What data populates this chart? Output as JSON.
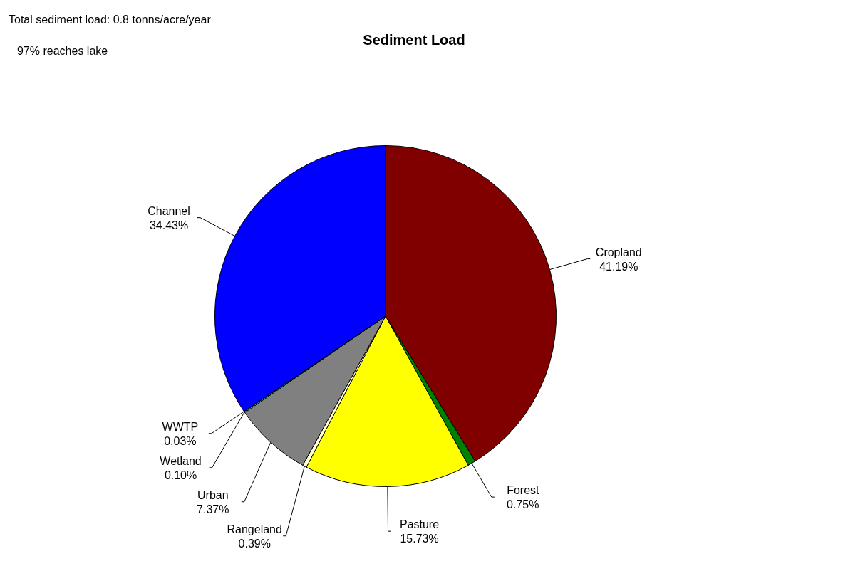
{
  "chart_data": {
    "type": "pie",
    "title": "Sediment Load",
    "annotations": [
      "Total sediment load: 0.8 tonns/acre/year",
      "97% reaches lake"
    ],
    "categories": [
      "Cropland",
      "Forest",
      "Pasture",
      "Rangeland",
      "Urban",
      "Wetland",
      "WWTP",
      "Channel"
    ],
    "values": [
      41.19,
      0.75,
      15.73,
      0.39,
      7.37,
      0.1,
      0.03,
      34.43
    ],
    "value_labels": [
      "41.19%",
      "0.75%",
      "15.73%",
      "0.39%",
      "7.37%",
      "0.10%",
      "0.03%",
      "34.43%"
    ],
    "colors": [
      "#800000",
      "#008000",
      "#ffff00",
      "#ffffcc",
      "#808080",
      "#00ffff",
      "#800080",
      "#0000ff"
    ],
    "legend": false
  }
}
